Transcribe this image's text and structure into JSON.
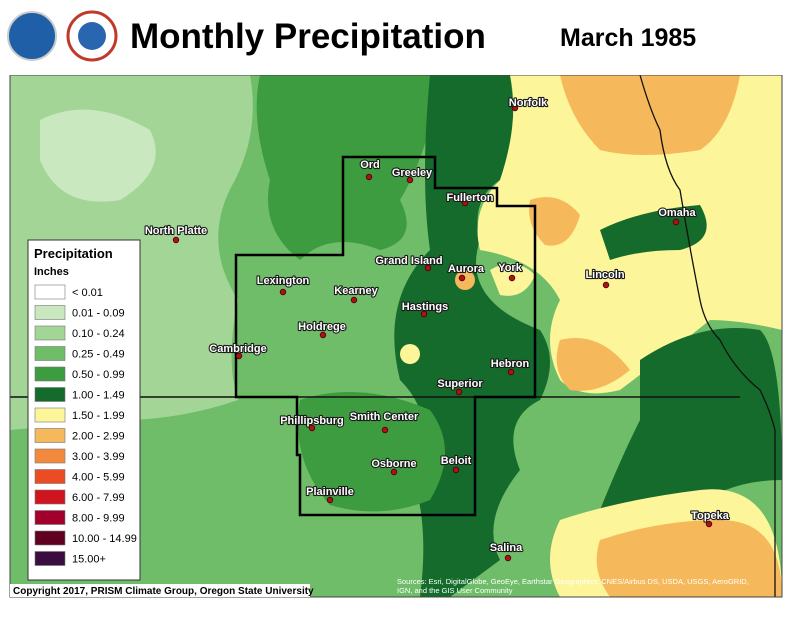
{
  "header": {
    "title": "Monthly Precipitation",
    "date": "March 1985"
  },
  "legend": {
    "title": "Precipitation",
    "units": "Inches",
    "items": [
      {
        "label": "< 0.01",
        "color": "#ffffff"
      },
      {
        "label": "0.01 - 0.09",
        "color": "#c9e8c0"
      },
      {
        "label": "0.10 - 0.24",
        "color": "#a3d696"
      },
      {
        "label": "0.25 - 0.49",
        "color": "#6fbd69"
      },
      {
        "label": "0.50 - 0.99",
        "color": "#3d9c40"
      },
      {
        "label": "1.00 - 1.49",
        "color": "#146b2b"
      },
      {
        "label": "1.50 - 1.99",
        "color": "#fdf59a"
      },
      {
        "label": "2.00 - 2.99",
        "color": "#f5b85a"
      },
      {
        "label": "3.00 - 3.99",
        "color": "#f28a3e"
      },
      {
        "label": "4.00 - 5.99",
        "color": "#ec4c24"
      },
      {
        "label": "6.00 - 7.99",
        "color": "#cf1420"
      },
      {
        "label": "8.00 - 9.99",
        "color": "#a1002d"
      },
      {
        "label": "10.00 - 14.99",
        "color": "#5f0020"
      },
      {
        "label": "15.00+",
        "color": "#3a0c40"
      }
    ]
  },
  "cities": [
    "Norfolk",
    "Ord",
    "Greeley",
    "Fullerton",
    "North Platte",
    "Omaha",
    "Grand Island",
    "Aurora",
    "York",
    "Lincoln",
    "Lexington",
    "Kearney",
    "Hastings",
    "Holdrege",
    "Cambridge",
    "Hebron",
    "Superior",
    "Phillipsburg",
    "Smith Center",
    "Osborne",
    "Beloit",
    "Plainville",
    "Topeka",
    "Salina"
  ],
  "footer": {
    "copyright": "Copyright 2017, PRISM Climate Group, Oregon State University",
    "source": [
      "Sources: Esri, DigitalGlobe, GeoEye, Earthstar Geographics, CNES/Airbus DS, USDA, USGS, AeroGRID,",
      "IGN, and the GIS User Community"
    ]
  }
}
